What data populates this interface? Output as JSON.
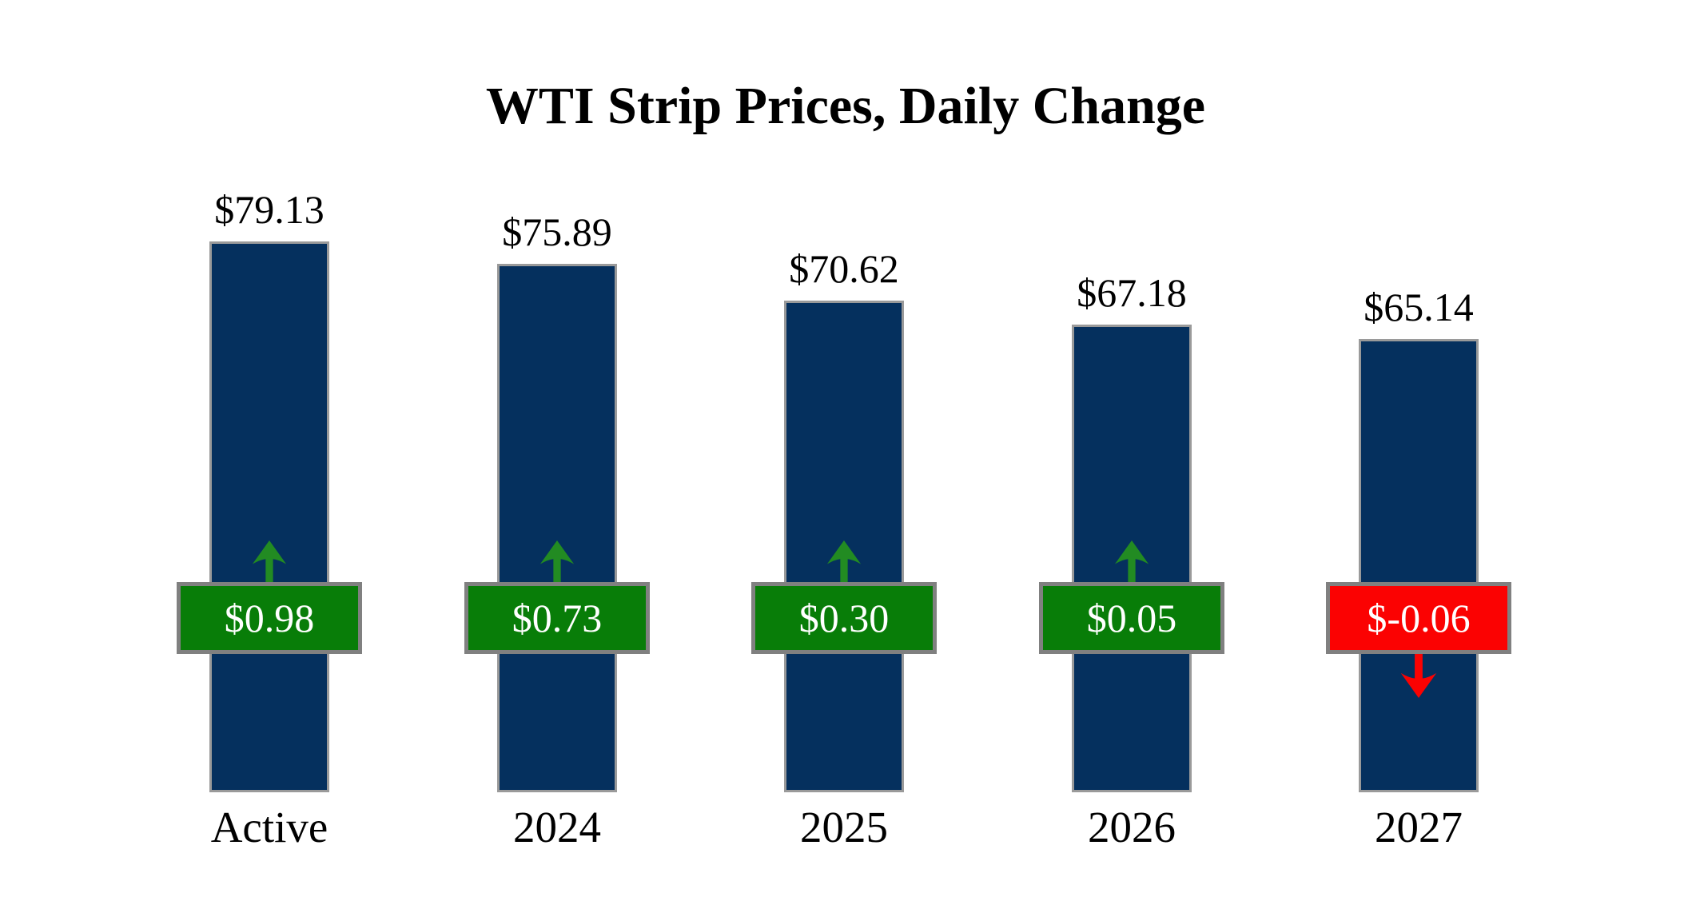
{
  "chart_data": {
    "type": "bar",
    "title": "WTI Strip Prices, Daily Change",
    "categories": [
      "Active",
      "2024",
      "2025",
      "2026",
      "2027"
    ],
    "series": [
      {
        "name": "strip-price",
        "values": [
          79.13,
          75.89,
          70.62,
          67.18,
          65.14
        ],
        "labels": [
          "$79.13",
          "$75.89",
          "$70.62",
          "$67.18",
          "$65.14"
        ]
      },
      {
        "name": "daily-change",
        "values": [
          0.98,
          0.73,
          0.3,
          0.05,
          -0.06
        ],
        "labels": [
          "$0.98",
          "$0.73",
          "$0.30",
          "$0.05",
          "$-0.06"
        ]
      }
    ],
    "ylim": [
      0,
      85
    ],
    "grid": false,
    "legend": "none",
    "axes_hidden": true,
    "annotations": "positive changes shown as green badges with up arrows, negative as red badges with down arrows",
    "colors": {
      "bar_fill": "#05305e",
      "bar_border": "#9a9a9a",
      "positive_badge": "#087d08",
      "negative_badge": "#fb0202",
      "badge_border": "#808080",
      "badge_text": "#ffffff",
      "up_arrow": "#228b22",
      "down_arrow": "#fb0202",
      "label_text": "#000000",
      "background": "#ffffff"
    }
  }
}
